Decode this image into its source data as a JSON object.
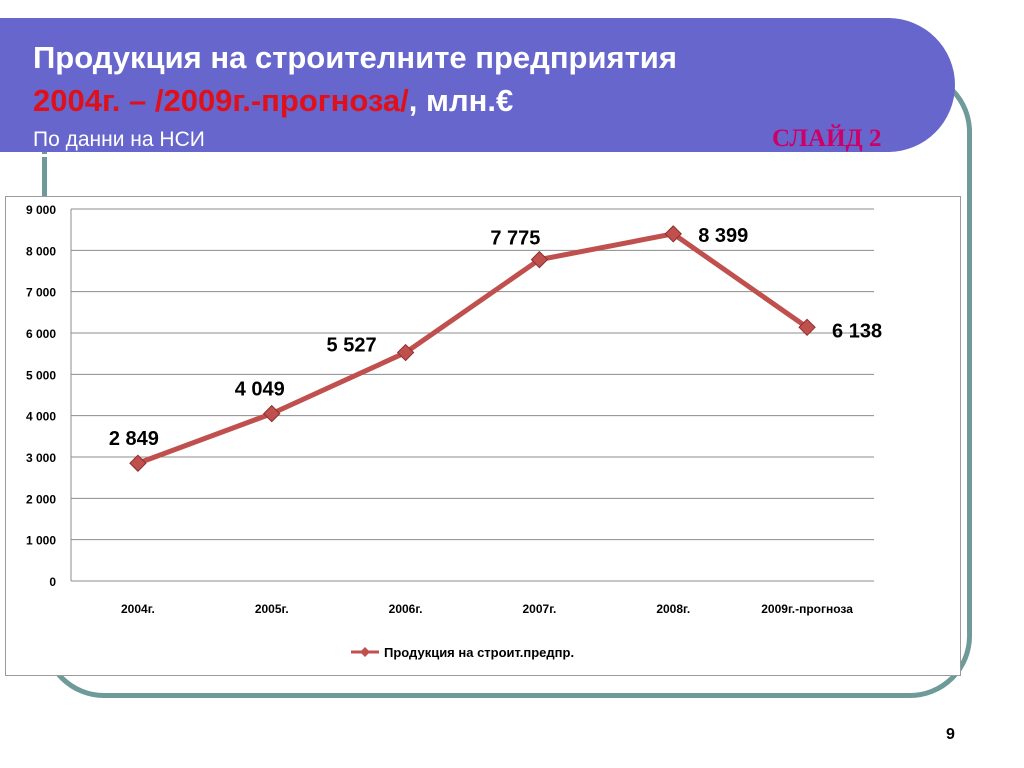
{
  "header": {
    "title_line1": "Продукция на строителните предприятия",
    "title_line2_red": "2004г. – /2009г.-прогноза/",
    "title_line2_rest": ", млн.€",
    "subtitle": "По данни на НСИ",
    "slide_label": "СЛАЙД 2"
  },
  "colors": {
    "banner": "#6666cc",
    "frame": "#6e9a9a",
    "title_accent": "#e0101a",
    "slide_label": "#cc0066",
    "series_line": "#c0504d"
  },
  "page_number": "9",
  "chart_data": {
    "type": "line",
    "categories": [
      "2004г.",
      "2005г.",
      "2006г.",
      "2007г.",
      "2008г.",
      "2009г.-прогноза"
    ],
    "series": [
      {
        "name": "Продукция на строит.предпр.",
        "values": [
          2849,
          4049,
          5527,
          7775,
          8399,
          6138
        ],
        "data_labels": [
          "2 849",
          "4 049",
          "5 527",
          "7 775",
          "8 399",
          "6 138"
        ]
      }
    ],
    "ylim": [
      0,
      9000
    ],
    "y_ticks": [
      0,
      1000,
      2000,
      3000,
      4000,
      5000,
      6000,
      7000,
      8000,
      9000
    ],
    "y_tick_labels": [
      "0",
      "1 000",
      "2 000",
      "3 000",
      "4 000",
      "5 000",
      "6 000",
      "7 000",
      "8 000",
      "9 000"
    ],
    "grid": true,
    "legend_position": "bottom",
    "marker": "diamond"
  }
}
